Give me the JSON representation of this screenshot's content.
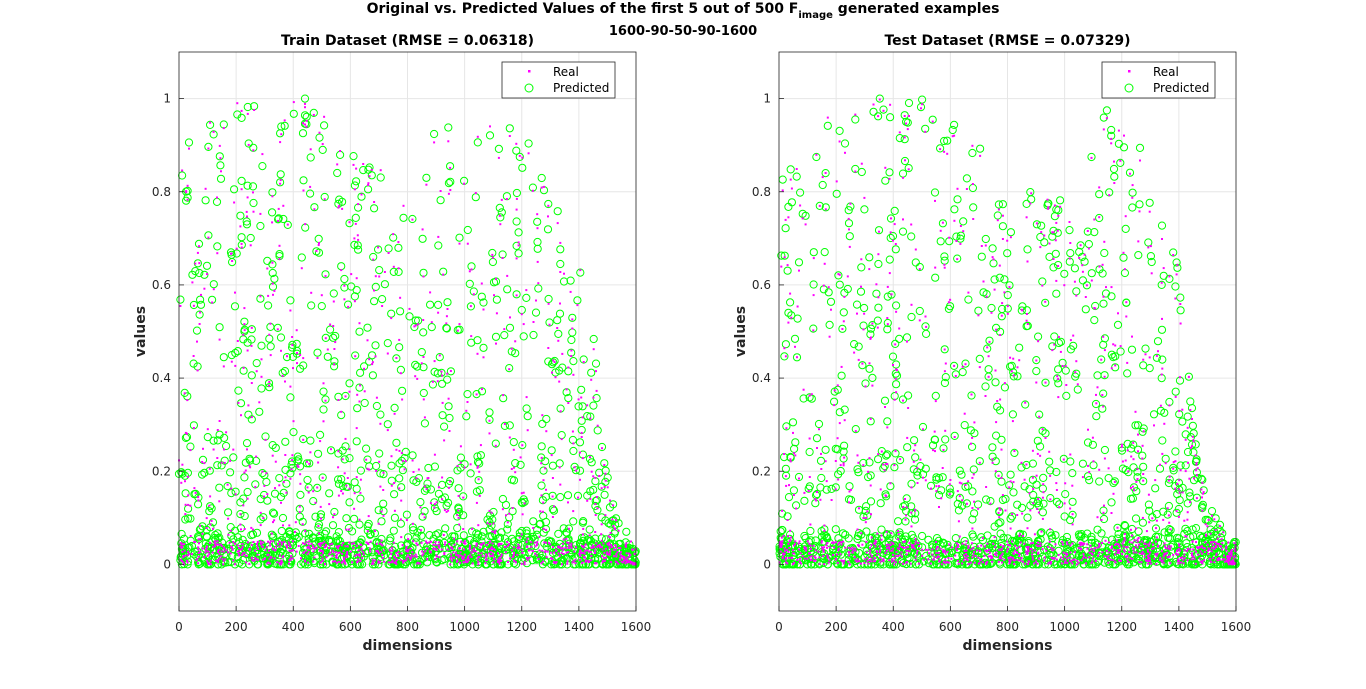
{
  "figure": {
    "title_main": "Original vs. Predicted Values of the first 5 out of 500 F",
    "title_sub": "image",
    "title_end": " generated examples",
    "subtitle": "1600-90-50-90-1600"
  },
  "colors": {
    "real": "#ff00ff",
    "predicted": "#00ff00",
    "grid": "#e6e6e6",
    "axis": "#262626"
  },
  "chart_data": [
    {
      "type": "scatter",
      "title": "Train Dataset (RMSE = 0.06318)",
      "xlabel": "dimensions",
      "ylabel": "values",
      "xlim": [
        0,
        1600
      ],
      "ylim": [
        -0.1,
        1.1
      ],
      "xticks": [
        "0",
        "200",
        "400",
        "600",
        "800",
        "1000",
        "1200",
        "1400",
        "1600"
      ],
      "yticks": [
        "0",
        "0.2",
        "0.4",
        "0.6",
        "0.8",
        "1"
      ],
      "grid": true,
      "legend_position": "top-right",
      "series": [
        {
          "name": "Real",
          "marker": "dot",
          "envelope": [
            [
              0,
              0.92
            ],
            [
              100,
              0.98
            ],
            [
              200,
              1.0
            ],
            [
              400,
              1.0
            ],
            [
              550,
              1.0
            ],
            [
              600,
              0.97
            ],
            [
              700,
              0.9
            ],
            [
              800,
              0.8
            ],
            [
              900,
              0.92
            ],
            [
              1000,
              0.9
            ],
            [
              1100,
              0.98
            ],
            [
              1200,
              0.92
            ],
            [
              1300,
              0.78
            ],
            [
              1400,
              0.66
            ],
            [
              1460,
              0.45
            ],
            [
              1500,
              0.2
            ],
            [
              1550,
              0.04
            ],
            [
              1600,
              0.0
            ]
          ]
        },
        {
          "name": "Predicted",
          "marker": "circle",
          "envelope": [
            [
              0,
              0.92
            ],
            [
              100,
              0.98
            ],
            [
              200,
              1.0
            ],
            [
              400,
              1.0
            ],
            [
              550,
              1.0
            ],
            [
              600,
              0.97
            ],
            [
              700,
              0.9
            ],
            [
              800,
              0.8
            ],
            [
              900,
              0.92
            ],
            [
              1000,
              0.9
            ],
            [
              1100,
              0.98
            ],
            [
              1200,
              0.92
            ],
            [
              1300,
              0.78
            ],
            [
              1400,
              0.66
            ],
            [
              1460,
              0.45
            ],
            [
              1500,
              0.2
            ],
            [
              1550,
              0.04
            ],
            [
              1600,
              0.0
            ]
          ]
        }
      ]
    },
    {
      "type": "scatter",
      "title": "Test Dataset (RMSE = 0.07329)",
      "xlabel": "dimensions",
      "ylabel": "values",
      "xlim": [
        0,
        1600
      ],
      "ylim": [
        -0.1,
        1.1
      ],
      "xticks": [
        "0",
        "200",
        "400",
        "600",
        "800",
        "1000",
        "1200",
        "1400",
        "1600"
      ],
      "yticks": [
        "0",
        "0.2",
        "0.4",
        "0.6",
        "0.8",
        "1"
      ],
      "grid": true,
      "legend_position": "top-right",
      "series": [
        {
          "name": "Real",
          "marker": "dot",
          "envelope": [
            [
              0,
              0.78
            ],
            [
              100,
              0.97
            ],
            [
              200,
              1.0
            ],
            [
              400,
              1.0
            ],
            [
              550,
              1.0
            ],
            [
              600,
              0.93
            ],
            [
              700,
              0.9
            ],
            [
              800,
              0.72
            ],
            [
              900,
              0.82
            ],
            [
              1000,
              0.78
            ],
            [
              1100,
              0.97
            ],
            [
              1200,
              0.95
            ],
            [
              1300,
              0.85
            ],
            [
              1400,
              0.65
            ],
            [
              1450,
              0.3
            ],
            [
              1500,
              0.12
            ],
            [
              1550,
              0.08
            ],
            [
              1600,
              0.0
            ]
          ]
        },
        {
          "name": "Predicted",
          "marker": "circle",
          "envelope": [
            [
              0,
              0.78
            ],
            [
              100,
              0.97
            ],
            [
              200,
              1.0
            ],
            [
              400,
              1.0
            ],
            [
              550,
              1.0
            ],
            [
              600,
              0.93
            ],
            [
              700,
              0.9
            ],
            [
              800,
              0.72
            ],
            [
              900,
              0.82
            ],
            [
              1000,
              0.78
            ],
            [
              1100,
              0.97
            ],
            [
              1200,
              0.95
            ],
            [
              1300,
              0.85
            ],
            [
              1400,
              0.65
            ],
            [
              1450,
              0.3
            ],
            [
              1500,
              0.12
            ],
            [
              1550,
              0.08
            ],
            [
              1600,
              0.0
            ]
          ]
        }
      ]
    }
  ]
}
